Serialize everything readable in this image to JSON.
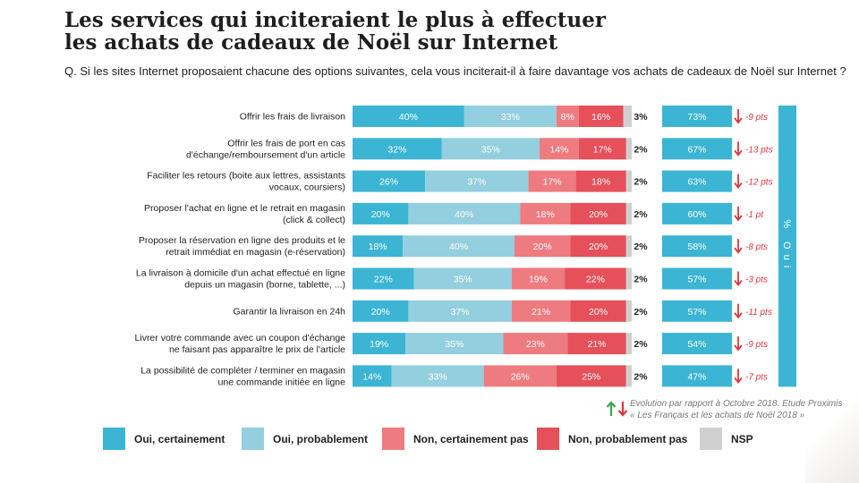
{
  "title_line1": "Les services qui inciteraient le plus à effectuer",
  "title_line2": "les achats de cadeaux de Noël sur Internet",
  "question": "Q. Si les sites Internet proposaient chacune des options suivantes, cela vous inciterait-il à faire davantage vos achats de cadeaux de Noël sur Internet ?",
  "source_line1": "Evolution par rapport à Octobre 2018. Etude Proximis",
  "source_line2": "« Les Français et les achats de Noël 2018 »",
  "chart_data": {
    "type": "bar",
    "orientation": "horizontal",
    "stacked": true,
    "xlim": [
      0,
      100
    ],
    "categories": [
      [
        "Offrir les frais de livraison"
      ],
      [
        "Offrir les frais de port en cas",
        "d'échange/remboursement d'un article"
      ],
      [
        "Faciliter les retours (boite aux lettres, assistants",
        "vocaux, coursiers)"
      ],
      [
        "Proposer l'achat en ligne et le retrait en magasin",
        "(click & collect)"
      ],
      [
        "Proposer la réservation en ligne des produits et le",
        "retrait immédiat en magasin (e-réservation)"
      ],
      [
        "La livraison à domicile d'un achat effectué en ligne",
        "depuis un magasin (borne, tablette, ...)"
      ],
      [
        "Garantir la livraison en 24h"
      ],
      [
        "Livrer votre commande avec un coupon d'échange",
        "ne faisant pas apparaître le prix de l'article"
      ],
      [
        "La possibilité de compléter / terminer en magasin",
        "une commande initiée en ligne"
      ]
    ],
    "series": [
      {
        "name": "Oui, certainement",
        "color": "#3bb5d3",
        "values": [
          40,
          32,
          26,
          20,
          18,
          22,
          20,
          19,
          14
        ]
      },
      {
        "name": "Oui, probablement",
        "color": "#93cfde",
        "values": [
          33,
          35,
          37,
          40,
          40,
          35,
          37,
          35,
          33
        ]
      },
      {
        "name": "Non, certainement pas",
        "color": "#ee7b80",
        "values": [
          8,
          14,
          17,
          18,
          20,
          19,
          21,
          23,
          26
        ]
      },
      {
        "name": "Non, probablement pas",
        "color": "#e5505a",
        "values": [
          16,
          17,
          18,
          20,
          20,
          22,
          20,
          21,
          25
        ]
      },
      {
        "name": "NSP",
        "color": "#cfcfcf",
        "values": [
          3,
          2,
          2,
          2,
          2,
          2,
          2,
          2,
          2
        ]
      }
    ],
    "oui_total": {
      "label": "% Oui",
      "values": [
        73,
        67,
        63,
        60,
        58,
        57,
        57,
        54,
        47
      ]
    },
    "evolution": {
      "direction": "down",
      "labels": [
        "-9 pts",
        "-13 pts",
        "-12 pts",
        "-1 pt",
        "-8 pts",
        "-3 pts",
        "-11 pts",
        "-9 pts",
        "-7 pts"
      ]
    },
    "colors": {
      "evolution_down": "#e0353f",
      "evolution_up": "#3aa64a",
      "oui_box": "#3bb5d3"
    }
  }
}
